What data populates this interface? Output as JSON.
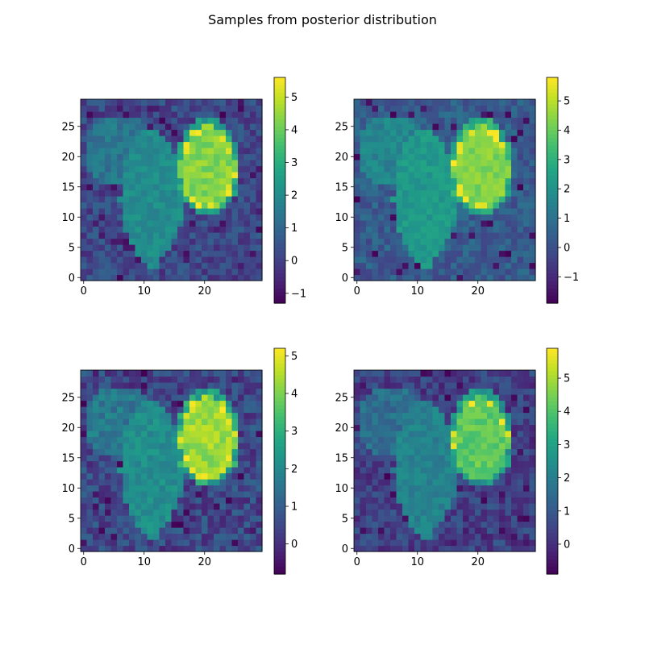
{
  "figure": {
    "title": "Samples from posterior distribution"
  },
  "colormap": "viridis",
  "chart_data": [
    {
      "type": "heatmap",
      "panel": "top-left",
      "title": "",
      "xlabel": "",
      "ylabel": "",
      "grid": false,
      "shape": [
        30,
        30
      ],
      "origin": "lower",
      "xlim": [
        -0.5,
        29.5
      ],
      "ylim": [
        -0.5,
        29.5
      ],
      "xticks": [
        0,
        10,
        20
      ],
      "yticks": [
        0,
        5,
        10,
        15,
        20,
        25
      ],
      "background_level": 0.2,
      "region_levels": {
        "small_blob": 2.0,
        "bright_blob": 4.3
      },
      "colorbar": {
        "min": -1.3,
        "max": 5.6,
        "ticks": [
          -1,
          0,
          1,
          2,
          3,
          4,
          5
        ]
      }
    },
    {
      "type": "heatmap",
      "panel": "top-right",
      "title": "",
      "xlabel": "",
      "ylabel": "",
      "grid": false,
      "shape": [
        30,
        30
      ],
      "origin": "lower",
      "xlim": [
        -0.5,
        29.5
      ],
      "ylim": [
        -0.5,
        29.5
      ],
      "xticks": [
        0,
        10,
        20
      ],
      "yticks": [
        0,
        5,
        10,
        15,
        20,
        25
      ],
      "background_level": 0.3,
      "region_levels": {
        "small_blob": 2.2,
        "bright_blob": 4.3
      },
      "colorbar": {
        "min": -1.9,
        "max": 5.8,
        "ticks": [
          -1,
          0,
          1,
          2,
          3,
          4,
          5
        ]
      }
    },
    {
      "type": "heatmap",
      "panel": "bottom-left",
      "title": "",
      "xlabel": "",
      "ylabel": "",
      "grid": false,
      "shape": [
        30,
        30
      ],
      "origin": "lower",
      "xlim": [
        -0.5,
        29.5
      ],
      "ylim": [
        -0.5,
        29.5
      ],
      "xticks": [
        0,
        10,
        20
      ],
      "yticks": [
        0,
        5,
        10,
        15,
        20,
        25
      ],
      "background_level": 0.5,
      "region_levels": {
        "small_blob": 2.1,
        "bright_blob": 4.3
      },
      "colorbar": {
        "min": -0.8,
        "max": 5.2,
        "ticks": [
          0,
          1,
          2,
          3,
          4,
          5
        ]
      }
    },
    {
      "type": "heatmap",
      "panel": "bottom-right",
      "title": "",
      "xlabel": "",
      "ylabel": "",
      "grid": false,
      "shape": [
        30,
        30
      ],
      "origin": "lower",
      "xlim": [
        -0.5,
        29.5
      ],
      "ylim": [
        -0.5,
        29.5
      ],
      "xticks": [
        0,
        10,
        20
      ],
      "yticks": [
        0,
        5,
        10,
        15,
        20,
        25
      ],
      "background_level": 0.4,
      "region_levels": {
        "small_blob": 2.1,
        "bright_blob": 4.2
      },
      "colorbar": {
        "min": -0.9,
        "max": 5.9,
        "ticks": [
          0,
          1,
          2,
          3,
          4,
          5
        ]
      }
    }
  ]
}
